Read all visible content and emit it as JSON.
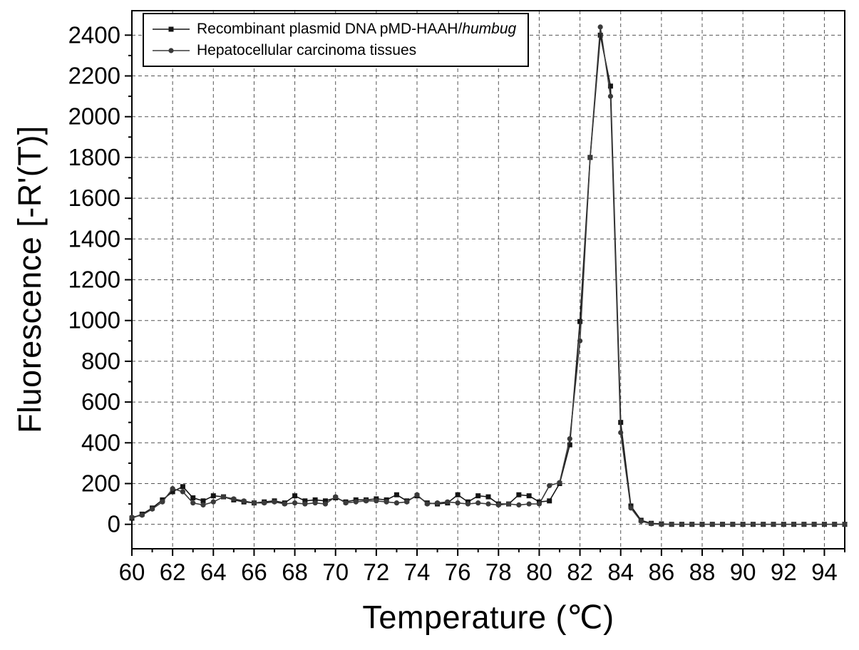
{
  "figure": {
    "background": "#ffffff",
    "frame_color": "#000000",
    "grid_color": "#555555"
  },
  "chart_data": {
    "type": "line",
    "title": "",
    "xlabel": "Temperature (℃)",
    "ylabel": "Fluorescence [-R'(T)]",
    "xlim": [
      60,
      95
    ],
    "ylim": [
      -120,
      2520
    ],
    "x_ticks": [
      60,
      62,
      64,
      66,
      68,
      70,
      72,
      74,
      76,
      78,
      80,
      82,
      84,
      86,
      88,
      90,
      92,
      94
    ],
    "y_ticks": [
      0,
      200,
      400,
      600,
      800,
      1000,
      1200,
      1400,
      1600,
      1800,
      2000,
      2200,
      2400
    ],
    "grid": "dashed",
    "legend_position": "top-left",
    "x_start": 60,
    "x_step": 0.5,
    "series": [
      {
        "name": "Recombinant plasmid DNA pMD-HAAH/humbug",
        "legend_text": "Recombinant plasmid DNA pMD-HAAH/",
        "legend_italic": "humbug",
        "marker": "square",
        "color": "#141414",
        "y": [
          30,
          50,
          80,
          120,
          160,
          185,
          130,
          115,
          140,
          135,
          120,
          110,
          105,
          110,
          115,
          105,
          140,
          115,
          120,
          115,
          130,
          110,
          120,
          120,
          125,
          120,
          145,
          115,
          140,
          105,
          100,
          105,
          145,
          110,
          140,
          135,
          100,
          100,
          145,
          140,
          110,
          115,
          200,
          390,
          995,
          1800,
          2400,
          2150,
          500,
          90,
          20,
          5,
          2,
          0,
          0,
          0,
          0,
          0,
          0,
          0,
          0,
          0,
          0,
          0,
          0,
          0,
          0,
          0,
          0,
          0,
          0
        ]
      },
      {
        "name": "Hepatocellular carcinoma tissues",
        "legend_text": "Hepatocellular carcinoma tissues",
        "legend_italic": "",
        "marker": "circle",
        "color": "#3a3a3a",
        "y": [
          35,
          45,
          75,
          110,
          175,
          160,
          105,
          95,
          110,
          135,
          125,
          115,
          105,
          105,
          110,
          100,
          105,
          100,
          105,
          100,
          135,
          105,
          110,
          115,
          115,
          110,
          105,
          110,
          145,
          100,
          105,
          110,
          105,
          100,
          105,
          100,
          95,
          100,
          95,
          100,
          100,
          190,
          205,
          420,
          900,
          1800,
          2440,
          2100,
          450,
          80,
          15,
          3,
          0,
          0,
          0,
          0,
          0,
          0,
          0,
          0,
          0,
          0,
          0,
          0,
          0,
          0,
          0,
          0,
          0,
          0,
          0
        ]
      }
    ]
  }
}
